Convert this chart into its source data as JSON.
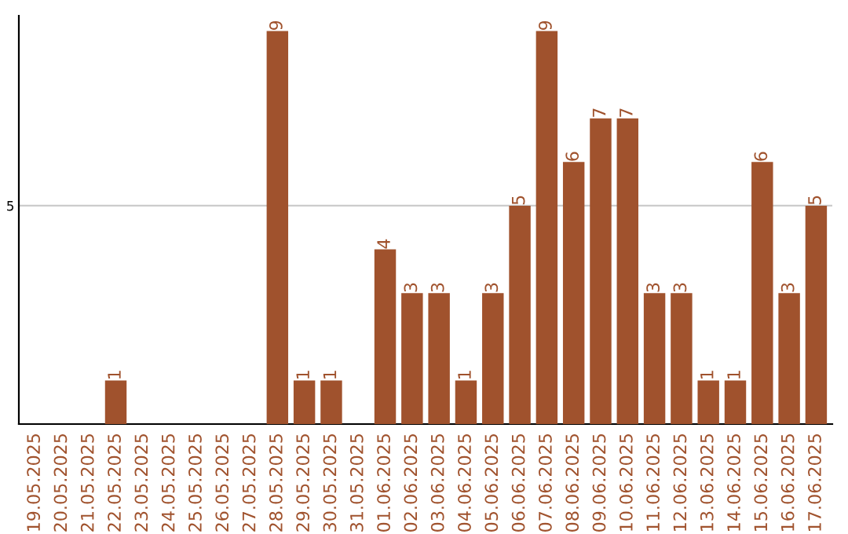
{
  "chart_data": {
    "type": "bar",
    "categories": [
      "19.05.2025",
      "20.05.2025",
      "21.05.2025",
      "22.05.2025",
      "23.05.2025",
      "24.05.2025",
      "25.05.2025",
      "26.05.2025",
      "27.05.2025",
      "28.05.2025",
      "29.05.2025",
      "30.05.2025",
      "31.05.2025",
      "01.06.2025",
      "02.06.2025",
      "03.06.2025",
      "04.06.2025",
      "05.06.2025",
      "06.06.2025",
      "07.06.2025",
      "08.06.2025",
      "09.06.2025",
      "10.06.2025",
      "11.06.2025",
      "12.06.2025",
      "13.06.2025",
      "14.06.2025",
      "15.06.2025",
      "16.06.2025",
      "17.06.2025"
    ],
    "values": [
      0,
      0,
      0,
      1,
      0,
      0,
      0,
      0,
      0,
      9,
      1,
      1,
      0,
      4,
      3,
      3,
      1,
      3,
      5,
      9,
      6,
      7,
      7,
      3,
      3,
      1,
      1,
      6,
      3,
      5
    ],
    "value_labels": [
      null,
      null,
      null,
      "1",
      null,
      null,
      null,
      null,
      null,
      "9",
      "1",
      "1",
      null,
      "4",
      "3",
      "3",
      "1",
      "3",
      "5",
      "9",
      "6",
      "7",
      "7",
      "3",
      "3",
      "1",
      "1",
      "6",
      "3",
      "5"
    ],
    "color": "#a0522d",
    "ylim": [
      0,
      9.35
    ],
    "yticks": [
      5
    ],
    "grid": "y"
  }
}
